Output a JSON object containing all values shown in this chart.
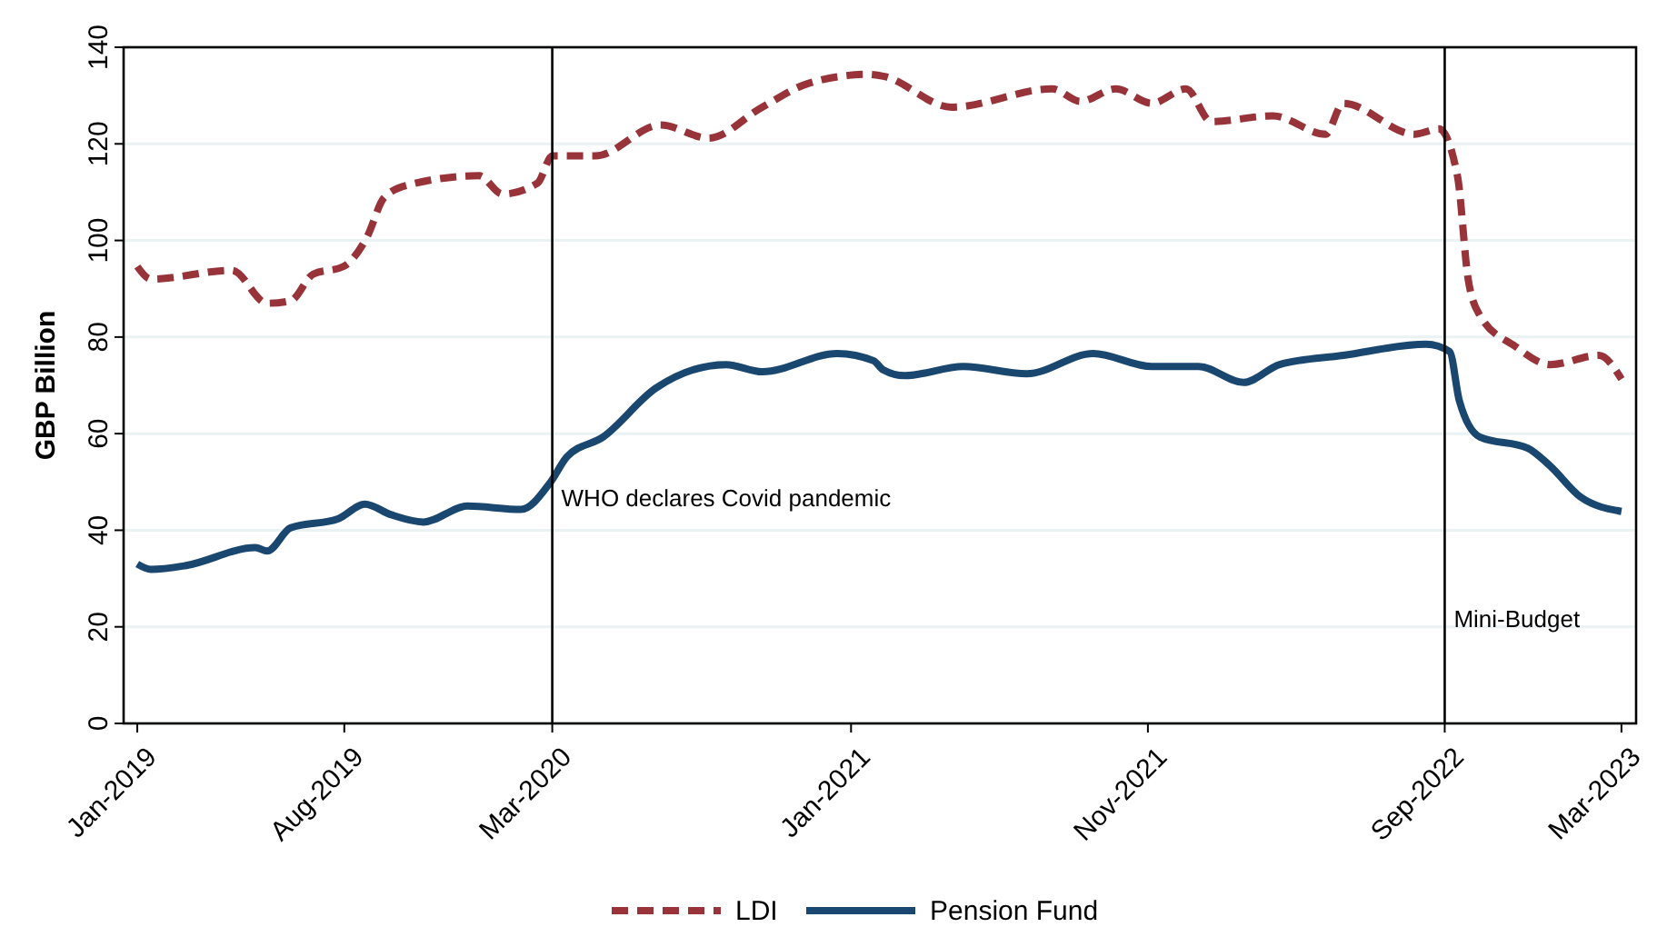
{
  "chart_data": {
    "type": "line",
    "ylabel": "GBP Billion",
    "xlim": [
      "2018-12-18",
      "2023-03-16"
    ],
    "ylim": [
      0,
      140
    ],
    "yticks": [
      0,
      20,
      40,
      60,
      80,
      100,
      120,
      140
    ],
    "xticks": [
      {
        "value": "2019-01",
        "label": "Jan-2019"
      },
      {
        "value": "2019-08",
        "label": "Aug-2019"
      },
      {
        "value": "2020-03",
        "label": "Mar-2020"
      },
      {
        "value": "2021-01",
        "label": "Jan-2021"
      },
      {
        "value": "2021-11",
        "label": "Nov-2021"
      },
      {
        "value": "2022-09",
        "label": "Sep-2022"
      },
      {
        "value": "2023-03",
        "label": "Mar-2023"
      }
    ],
    "grid": "y",
    "legend": "bottom",
    "ref_lines": [
      {
        "axis": "x",
        "value": "2020-03",
        "label": "WHO declares Covid pandemic",
        "color": "#000000"
      },
      {
        "axis": "x",
        "value": "2022-09",
        "label": "Mini-Budget",
        "color": "#000000"
      }
    ],
    "series": [
      {
        "name": "LDI",
        "color": "#973339",
        "line_style": "dashed",
        "x": [
          "2019-01-01",
          "2019-01-15",
          "2019-04-08",
          "2019-05-14",
          "2019-06-07",
          "2019-06-30",
          "2019-07-31",
          "2019-08-24",
          "2019-09-11",
          "2019-10-06",
          "2019-12-17",
          "2020-01-10",
          "2020-02-15",
          "2020-03-01",
          "2020-04-14",
          "2020-06-20",
          "2020-08-08",
          "2020-10-02",
          "2020-11-18",
          "2021-01-19",
          "2021-02-03",
          "2021-04-14",
          "2021-07-26",
          "2021-08-24",
          "2021-09-29",
          "2021-11-05",
          "2021-12-10",
          "2022-01-05",
          "2022-03-09",
          "2022-05-02",
          "2022-05-20",
          "2022-08-01",
          "2022-08-26",
          "2022-09-14",
          "2022-09-25",
          "2022-10-07",
          "2022-11-12",
          "2022-12-18",
          "2023-02-06",
          "2023-03-01"
        ],
        "values": [
          94.6,
          92,
          93.8,
          87,
          87.5,
          93,
          94.6,
          100.6,
          108.9,
          111.5,
          113.4,
          109.6,
          111.9,
          117.5,
          117.5,
          123.9,
          121.2,
          127.6,
          132.5,
          134.4,
          134,
          127.6,
          131.4,
          128.8,
          131.4,
          128.4,
          131.4,
          124.6,
          125.8,
          122,
          128.4,
          122,
          123.1,
          113.4,
          92,
          84.5,
          78.1,
          74.3,
          76.2,
          71.3
        ]
      },
      {
        "name": "Pension Fund",
        "color": "#1a476f",
        "line_style": "solid",
        "x": [
          "2019-01-01",
          "2019-01-15",
          "2019-02-20",
          "2019-05-02",
          "2019-05-14",
          "2019-06-07",
          "2019-07-26",
          "2019-08-22",
          "2019-09-18",
          "2019-10-21",
          "2019-12-05",
          "2020-01-29",
          "2020-02-28",
          "2020-03-16",
          "2020-04-22",
          "2020-06-15",
          "2020-08-26",
          "2020-10-02",
          "2020-12-18",
          "2021-01-24",
          "2021-02-03",
          "2021-02-25",
          "2021-04-26",
          "2021-06-30",
          "2021-09-06",
          "2021-11-05",
          "2021-12-23",
          "2022-02-07",
          "2022-03-16",
          "2022-05-20",
          "2022-08-13",
          "2022-09-06",
          "2022-09-16",
          "2022-10-07",
          "2022-11-25",
          "2022-12-18",
          "2023-01-18",
          "2023-03-01"
        ],
        "values": [
          33,
          31.9,
          32.7,
          36.4,
          35.7,
          40.5,
          42.4,
          45.4,
          43.2,
          41.7,
          45,
          44.3,
          49.9,
          55.2,
          59.3,
          69.4,
          74.3,
          72.8,
          76.6,
          75.1,
          73.2,
          72,
          73.9,
          72.4,
          76.6,
          73.9,
          73.9,
          70.6,
          74.3,
          76.2,
          78.5,
          77,
          66.8,
          59.3,
          57,
          53.3,
          46.9,
          43.9
        ]
      }
    ]
  }
}
